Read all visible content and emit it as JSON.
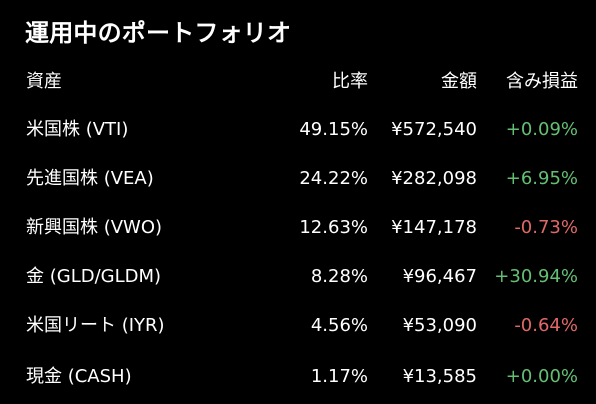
{
  "title": "運用中のポートフォリオ",
  "header": {
    "asset": "資産",
    "ratio": "比率",
    "amount": "金額",
    "pl": "含み損益"
  },
  "colors": {
    "background": "#000000",
    "text": "#ffffff",
    "positive": "#64bf74",
    "negative": "#e06868"
  },
  "rows": [
    {
      "asset": "米国株 (VTI)",
      "ratio": "49.15%",
      "amount": "¥572,540",
      "pl": "+0.09%",
      "pl_sign": "pos"
    },
    {
      "asset": "先進国株 (VEA)",
      "ratio": "24.22%",
      "amount": "¥282,098",
      "pl": "+6.95%",
      "pl_sign": "pos"
    },
    {
      "asset": "新興国株 (VWO)",
      "ratio": "12.63%",
      "amount": "¥147,178",
      "pl": "-0.73%",
      "pl_sign": "neg"
    },
    {
      "asset": "金 (GLD/GLDM)",
      "ratio": "8.28%",
      "amount": "¥96,467",
      "pl": "+30.94%",
      "pl_sign": "pos"
    },
    {
      "asset": "米国リート (IYR)",
      "ratio": "4.56%",
      "amount": "¥53,090",
      "pl": "-0.64%",
      "pl_sign": "neg"
    },
    {
      "asset": "現金 (CASH)",
      "ratio": "1.17%",
      "amount": "¥13,585",
      "pl": "+0.00%",
      "pl_sign": "pos"
    }
  ]
}
